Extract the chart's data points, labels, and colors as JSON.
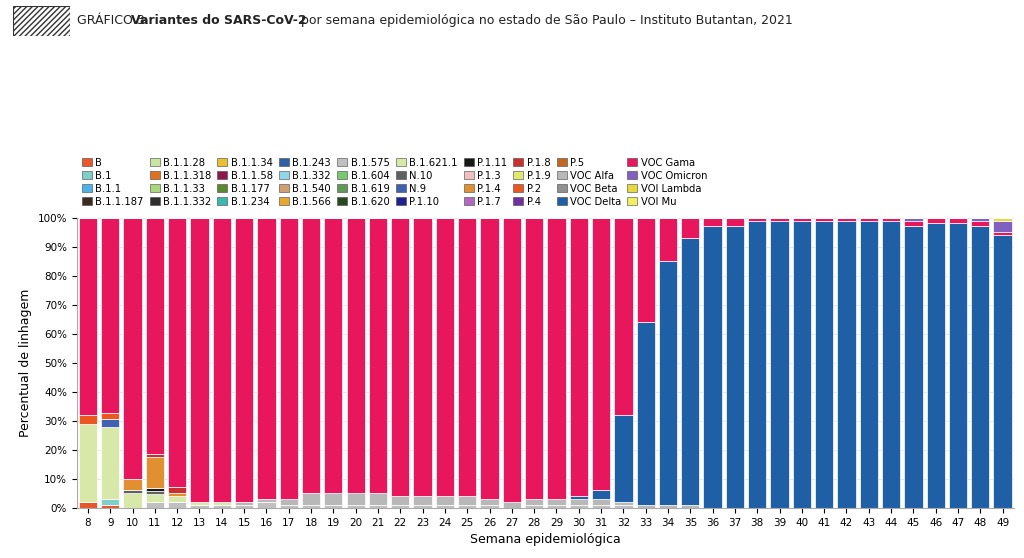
{
  "title_prefix": "GRÁFICO 3. ",
  "title_bold": "Variantes do SARS-CoV-2",
  "title_suffix": " por semana epidemiológica no estado de São Paulo – Instituto Butantan, 2021",
  "xlabel": "Semana epidemiológica",
  "ylabel": "Percentual de linhagem",
  "weeks": [
    8,
    9,
    10,
    11,
    12,
    13,
    14,
    15,
    16,
    17,
    18,
    19,
    20,
    21,
    22,
    23,
    24,
    25,
    26,
    27,
    28,
    29,
    30,
    31,
    32,
    33,
    34,
    35,
    36,
    37,
    38,
    39,
    40,
    41,
    42,
    43,
    44,
    45,
    46,
    47,
    48,
    49
  ],
  "variants_order": [
    "B",
    "B.1",
    "B.1.1",
    "B.1.1.187",
    "B.1.1.28",
    "B.1.1.318",
    "B.1.1.33",
    "B.1.1.332",
    "B.1.1.34",
    "B.1.1.58",
    "B.1.177",
    "B.1.234",
    "B.1.243",
    "B.1.332",
    "B.1.540",
    "B.1.566",
    "B.1.575",
    "B.1.604",
    "B.1.619",
    "B.1.620",
    "B.1.621.1",
    "N.10",
    "N.9",
    "P.1.10",
    "P.1.11",
    "P.1.3",
    "P.1.4",
    "P.1.7",
    "P.1.8",
    "P.1.9",
    "P.2",
    "P.4",
    "P.5",
    "VOC Alfa",
    "VOC Beta",
    "VOC Delta",
    "VOC Gama",
    "VOC Omicron",
    "VOI Lambda",
    "VOI Mu"
  ],
  "variants": {
    "B": {
      "color": "#e8562a"
    },
    "B.1": {
      "color": "#7ecfc9"
    },
    "B.1.1": {
      "color": "#4db3e6"
    },
    "B.1.1.187": {
      "color": "#3d2b1f"
    },
    "B.1.1.28": {
      "color": "#c8e6a0"
    },
    "B.1.1.318": {
      "color": "#e07020"
    },
    "B.1.1.33": {
      "color": "#a8d878"
    },
    "B.1.1.332": {
      "color": "#2d2d2d"
    },
    "B.1.1.34": {
      "color": "#e8c030"
    },
    "B.1.1.58": {
      "color": "#8b1a4a"
    },
    "B.1.177": {
      "color": "#5a8a30"
    },
    "B.1.234": {
      "color": "#3ab8b0"
    },
    "B.1.243": {
      "color": "#3060a8"
    },
    "B.1.332": {
      "color": "#90d8e8"
    },
    "B.1.540": {
      "color": "#d0a070"
    },
    "B.1.566": {
      "color": "#e8a830"
    },
    "B.1.575": {
      "color": "#c0c0c0"
    },
    "B.1.604": {
      "color": "#78c870"
    },
    "B.1.619": {
      "color": "#609858"
    },
    "B.1.620": {
      "color": "#284820"
    },
    "B.1.621.1": {
      "color": "#d8e8a8"
    },
    "N.10": {
      "color": "#606060"
    },
    "N.9": {
      "color": "#4060b0"
    },
    "P.1.10": {
      "color": "#202090"
    },
    "P.1.11": {
      "color": "#181818"
    },
    "P.1.3": {
      "color": "#f0c0c0"
    },
    "P.1.4": {
      "color": "#e09030"
    },
    "P.1.7": {
      "color": "#b068c0"
    },
    "P.1.8": {
      "color": "#c83030"
    },
    "P.1.9": {
      "color": "#e0e870"
    },
    "P.2": {
      "color": "#e85820"
    },
    "P.4": {
      "color": "#7030a0"
    },
    "P.5": {
      "color": "#c06820"
    },
    "VOC Alfa": {
      "color": "#b8b8b8"
    },
    "VOC Beta": {
      "color": "#909090"
    },
    "VOC Delta": {
      "color": "#1f5fa6"
    },
    "VOC Gama": {
      "color": "#e8175d"
    },
    "VOC Omicron": {
      "color": "#8060c0"
    },
    "VOI Lambda": {
      "color": "#e8d840"
    },
    "VOI Mu": {
      "color": "#f0f060"
    }
  },
  "data": {
    "B": [
      2,
      1,
      0,
      0,
      0,
      0,
      0,
      0,
      0,
      0,
      0,
      0,
      0,
      0,
      0,
      0,
      0,
      0,
      0,
      0,
      0,
      0,
      0,
      0,
      0,
      0,
      0,
      0,
      0,
      0,
      0,
      0,
      0,
      0,
      0,
      0,
      0,
      0,
      0,
      0,
      0,
      0
    ],
    "B.1": [
      0,
      2,
      0,
      0,
      0,
      0,
      0,
      0,
      0,
      0,
      0,
      0,
      0,
      0,
      0,
      0,
      0,
      0,
      0,
      0,
      0,
      0,
      0,
      0,
      0,
      0,
      0,
      0,
      0,
      0,
      0,
      0,
      0,
      0,
      0,
      0,
      0,
      0,
      0,
      0,
      0,
      0
    ],
    "B.1.1": [
      0,
      0,
      0,
      0,
      0,
      0,
      0,
      0,
      0,
      0,
      0,
      0,
      0,
      0,
      0,
      0,
      0,
      0,
      0,
      0,
      0,
      0,
      0,
      0,
      0,
      0,
      0,
      0,
      0,
      0,
      0,
      0,
      0,
      0,
      0,
      0,
      0,
      0,
      0,
      0,
      0,
      0
    ],
    "B.1.1.187": [
      0,
      0,
      0,
      0,
      0,
      0,
      0,
      0,
      0,
      0,
      0,
      0,
      0,
      0,
      0,
      0,
      0,
      0,
      0,
      0,
      0,
      0,
      0,
      0,
      0,
      0,
      0,
      0,
      0,
      0,
      0,
      0,
      0,
      0,
      0,
      0,
      0,
      0,
      0,
      0,
      0,
      0
    ],
    "B.1.1.28": [
      0,
      0,
      0,
      0,
      0,
      0,
      0,
      0,
      0,
      0,
      0,
      0,
      0,
      0,
      0,
      0,
      0,
      0,
      0,
      0,
      0,
      0,
      0,
      0,
      0,
      0,
      0,
      0,
      0,
      0,
      0,
      0,
      0,
      0,
      0,
      0,
      0,
      0,
      0,
      0,
      0,
      0
    ],
    "B.1.1.318": [
      0,
      0,
      0,
      0,
      0,
      0,
      0,
      0,
      0,
      0,
      0,
      0,
      0,
      0,
      0,
      0,
      0,
      0,
      0,
      0,
      0,
      0,
      0,
      0,
      0,
      0,
      0,
      0,
      0,
      0,
      0,
      0,
      0,
      0,
      0,
      0,
      0,
      0,
      0,
      0,
      0,
      0
    ],
    "B.1.1.33": [
      0,
      0,
      0,
      0,
      0,
      0,
      0,
      0,
      0,
      0,
      0,
      0,
      0,
      0,
      0,
      0,
      0,
      0,
      0,
      0,
      0,
      0,
      0,
      0,
      0,
      0,
      0,
      0,
      0,
      0,
      0,
      0,
      0,
      0,
      0,
      0,
      0,
      0,
      0,
      0,
      0,
      0
    ],
    "B.1.1.332": [
      0,
      0,
      0,
      0,
      0,
      0,
      0,
      0,
      0,
      0,
      0,
      0,
      0,
      0,
      0,
      0,
      0,
      0,
      0,
      0,
      0,
      0,
      0,
      0,
      0,
      0,
      0,
      0,
      0,
      0,
      0,
      0,
      0,
      0,
      0,
      0,
      0,
      0,
      0,
      0,
      0,
      0
    ],
    "B.1.1.34": [
      0,
      0,
      0,
      0,
      0,
      0,
      0,
      0,
      0,
      0,
      0,
      0,
      0,
      0,
      0,
      0,
      0,
      0,
      0,
      0,
      0,
      0,
      0,
      0,
      0,
      0,
      0,
      0,
      0,
      0,
      0,
      0,
      0,
      0,
      0,
      0,
      0,
      0,
      0,
      0,
      0,
      0
    ],
    "B.1.1.58": [
      0,
      0,
      0,
      0,
      0,
      0,
      0,
      0,
      0,
      0,
      0,
      0,
      0,
      0,
      0,
      0,
      0,
      0,
      0,
      0,
      0,
      0,
      0,
      0,
      0,
      0,
      0,
      0,
      0,
      0,
      0,
      0,
      0,
      0,
      0,
      0,
      0,
      0,
      0,
      0,
      0,
      0
    ],
    "B.1.177": [
      0,
      0,
      0,
      0,
      0,
      0,
      0,
      0,
      0,
      0,
      0,
      0,
      0,
      0,
      0,
      0,
      0,
      0,
      0,
      0,
      0,
      0,
      0,
      0,
      0,
      0,
      0,
      0,
      0,
      0,
      0,
      0,
      0,
      0,
      0,
      0,
      0,
      0,
      0,
      0,
      0,
      0
    ],
    "B.1.234": [
      0,
      0,
      0,
      0,
      0,
      0,
      0,
      0,
      0,
      0,
      0,
      0,
      0,
      0,
      0,
      0,
      0,
      0,
      0,
      0,
      0,
      0,
      0,
      0,
      0,
      0,
      0,
      0,
      0,
      0,
      0,
      0,
      0,
      0,
      0,
      0,
      0,
      0,
      0,
      0,
      0,
      0
    ],
    "B.1.243": [
      0,
      0,
      0,
      0,
      0,
      0,
      0,
      0,
      0,
      0,
      0,
      0,
      0,
      0,
      0,
      0,
      0,
      0,
      0,
      0,
      0,
      0,
      0,
      0,
      0,
      0,
      0,
      0,
      0,
      0,
      0,
      0,
      0,
      0,
      0,
      0,
      0,
      0,
      0,
      0,
      0,
      0
    ],
    "B.1.332": [
      0,
      0,
      0,
      0,
      0,
      0,
      0,
      0,
      0,
      0,
      0,
      0,
      0,
      0,
      0,
      0,
      0,
      0,
      0,
      0,
      0,
      0,
      0,
      0,
      0,
      0,
      0,
      0,
      0,
      0,
      0,
      0,
      0,
      0,
      0,
      0,
      0,
      0,
      0,
      0,
      0,
      0
    ],
    "B.1.540": [
      0,
      0,
      0,
      0,
      0,
      0,
      0,
      0,
      0,
      0,
      0,
      0,
      0,
      0,
      0,
      0,
      0,
      0,
      0,
      0,
      0,
      0,
      0,
      0,
      0,
      0,
      0,
      0,
      0,
      0,
      0,
      0,
      0,
      0,
      0,
      0,
      0,
      0,
      0,
      0,
      0,
      0
    ],
    "B.1.566": [
      0,
      0,
      0,
      0,
      0,
      0,
      0,
      0,
      0,
      0,
      0,
      0,
      0,
      0,
      0,
      0,
      0,
      0,
      0,
      0,
      0,
      0,
      0,
      0,
      0,
      0,
      0,
      0,
      0,
      0,
      0,
      0,
      0,
      0,
      0,
      0,
      0,
      0,
      0,
      0,
      0,
      0
    ],
    "B.1.575": [
      0,
      0,
      0,
      2,
      2,
      1,
      1,
      1,
      2,
      1,
      1,
      1,
      1,
      1,
      1,
      1,
      1,
      1,
      1,
      0,
      1,
      1,
      1,
      1,
      1,
      0,
      0,
      0,
      0,
      0,
      0,
      0,
      0,
      0,
      0,
      0,
      0,
      0,
      0,
      0,
      0,
      0
    ],
    "B.1.604": [
      0,
      0,
      0,
      0,
      0,
      0,
      0,
      0,
      0,
      0,
      0,
      0,
      0,
      0,
      0,
      0,
      0,
      0,
      0,
      0,
      0,
      0,
      0,
      0,
      0,
      0,
      0,
      0,
      0,
      0,
      0,
      0,
      0,
      0,
      0,
      0,
      0,
      0,
      0,
      0,
      0,
      0
    ],
    "B.1.619": [
      0,
      0,
      0,
      0,
      0,
      0,
      0,
      0,
      0,
      0,
      0,
      0,
      0,
      0,
      0,
      0,
      0,
      0,
      0,
      0,
      0,
      0,
      0,
      0,
      0,
      0,
      0,
      0,
      0,
      0,
      0,
      0,
      0,
      0,
      0,
      0,
      0,
      0,
      0,
      0,
      0,
      0
    ],
    "B.1.620": [
      0,
      0,
      0,
      0,
      0,
      0,
      0,
      0,
      0,
      0,
      0,
      0,
      0,
      0,
      0,
      0,
      0,
      0,
      0,
      0,
      0,
      0,
      0,
      0,
      0,
      0,
      0,
      0,
      0,
      0,
      0,
      0,
      0,
      0,
      0,
      0,
      0,
      0,
      0,
      0,
      0,
      0
    ],
    "B.1.621.1": [
      27,
      25,
      5,
      3,
      2,
      1,
      1,
      0,
      0,
      0,
      0,
      0,
      0,
      0,
      0,
      0,
      0,
      0,
      0,
      0,
      0,
      0,
      0,
      0,
      0,
      0,
      0,
      0,
      0,
      0,
      0,
      0,
      0,
      0,
      0,
      0,
      0,
      0,
      0,
      0,
      0,
      0
    ],
    "N.10": [
      0,
      0,
      1,
      1,
      0,
      0,
      0,
      0,
      0,
      0,
      0,
      0,
      0,
      0,
      0,
      0,
      0,
      0,
      0,
      0,
      0,
      0,
      0,
      0,
      0,
      0,
      0,
      0,
      0,
      0,
      0,
      0,
      0,
      0,
      0,
      0,
      0,
      0,
      0,
      0,
      0,
      0
    ],
    "N.9": [
      0,
      3,
      0,
      0,
      0,
      0,
      0,
      0,
      0,
      0,
      0,
      0,
      0,
      0,
      0,
      0,
      0,
      0,
      0,
      0,
      0,
      0,
      0,
      0,
      0,
      0,
      0,
      0,
      0,
      0,
      0,
      0,
      0,
      0,
      0,
      0,
      0,
      0,
      0,
      0,
      0,
      0
    ],
    "P.1.10": [
      0,
      0,
      0,
      0,
      0,
      0,
      0,
      0,
      0,
      0,
      0,
      0,
      0,
      0,
      0,
      0,
      0,
      0,
      0,
      0,
      0,
      0,
      0,
      0,
      0,
      0,
      0,
      0,
      0,
      0,
      0,
      0,
      0,
      0,
      0,
      0,
      0,
      0,
      0,
      0,
      0,
      0
    ],
    "P.1.11": [
      0,
      0,
      0,
      1,
      0,
      0,
      0,
      0,
      0,
      0,
      0,
      0,
      0,
      0,
      0,
      0,
      0,
      0,
      0,
      0,
      0,
      0,
      0,
      0,
      0,
      0,
      0,
      0,
      0,
      0,
      0,
      0,
      0,
      0,
      0,
      0,
      0,
      0,
      0,
      0,
      0,
      0
    ],
    "P.1.3": [
      0,
      0,
      0,
      0,
      0,
      0,
      0,
      0,
      0,
      0,
      0,
      0,
      0,
      0,
      0,
      0,
      0,
      0,
      0,
      0,
      0,
      0,
      0,
      0,
      0,
      0,
      0,
      0,
      0,
      0,
      0,
      0,
      0,
      0,
      0,
      0,
      0,
      0,
      0,
      0,
      0,
      0
    ],
    "P.1.4": [
      0,
      0,
      4,
      11,
      1,
      0,
      0,
      0,
      0,
      0,
      0,
      0,
      0,
      0,
      0,
      0,
      0,
      0,
      0,
      0,
      0,
      0,
      0,
      0,
      0,
      0,
      0,
      0,
      0,
      0,
      0,
      0,
      0,
      0,
      0,
      0,
      0,
      0,
      0,
      0,
      0,
      0
    ],
    "P.1.7": [
      0,
      0,
      0,
      0,
      0,
      0,
      0,
      0,
      0,
      0,
      0,
      0,
      0,
      0,
      0,
      0,
      0,
      0,
      0,
      0,
      0,
      0,
      0,
      0,
      0,
      0,
      0,
      0,
      0,
      0,
      0,
      0,
      0,
      0,
      0,
      0,
      0,
      0,
      0,
      0,
      0,
      0
    ],
    "P.1.8": [
      0,
      0,
      0,
      1,
      2,
      0,
      0,
      0,
      0,
      0,
      0,
      0,
      0,
      0,
      0,
      0,
      0,
      0,
      0,
      0,
      0,
      0,
      0,
      0,
      0,
      0,
      0,
      0,
      0,
      0,
      0,
      0,
      0,
      0,
      0,
      0,
      0,
      0,
      0,
      0,
      0,
      0
    ],
    "P.1.9": [
      0,
      0,
      0,
      0,
      0,
      0,
      0,
      0,
      0,
      0,
      0,
      0,
      0,
      0,
      0,
      0,
      0,
      0,
      0,
      0,
      0,
      0,
      0,
      0,
      0,
      0,
      0,
      0,
      0,
      0,
      0,
      0,
      0,
      0,
      0,
      0,
      0,
      0,
      0,
      0,
      0,
      0
    ],
    "P.2": [
      3,
      2,
      0,
      0,
      0,
      0,
      0,
      0,
      0,
      0,
      0,
      0,
      0,
      0,
      0,
      0,
      0,
      0,
      0,
      0,
      0,
      0,
      0,
      0,
      0,
      0,
      0,
      0,
      0,
      0,
      0,
      0,
      0,
      0,
      0,
      0,
      0,
      0,
      0,
      0,
      0,
      0
    ],
    "P.4": [
      0,
      0,
      0,
      0,
      0,
      0,
      0,
      0,
      0,
      0,
      0,
      0,
      0,
      0,
      0,
      0,
      0,
      0,
      0,
      0,
      0,
      0,
      0,
      0,
      0,
      0,
      0,
      0,
      0,
      0,
      0,
      0,
      0,
      0,
      0,
      0,
      0,
      0,
      0,
      0,
      0,
      0
    ],
    "P.5": [
      0,
      0,
      0,
      0,
      0,
      0,
      0,
      0,
      0,
      0,
      0,
      0,
      0,
      0,
      0,
      0,
      0,
      0,
      0,
      0,
      0,
      0,
      0,
      0,
      0,
      0,
      0,
      0,
      0,
      0,
      0,
      0,
      0,
      0,
      0,
      0,
      0,
      0,
      0,
      0,
      0,
      0
    ],
    "VOC Alfa": [
      0,
      0,
      0,
      0,
      0,
      0,
      0,
      1,
      1,
      2,
      4,
      4,
      4,
      4,
      3,
      3,
      3,
      3,
      2,
      2,
      2,
      2,
      2,
      2,
      1,
      1,
      1,
      1,
      0,
      0,
      0,
      0,
      0,
      0,
      0,
      0,
      0,
      0,
      0,
      0,
      0,
      0
    ],
    "VOC Beta": [
      0,
      0,
      0,
      0,
      0,
      0,
      0,
      0,
      0,
      0,
      0,
      0,
      0,
      0,
      0,
      0,
      0,
      0,
      0,
      0,
      0,
      0,
      0,
      0,
      0,
      0,
      0,
      0,
      0,
      0,
      0,
      0,
      0,
      0,
      0,
      0,
      0,
      0,
      0,
      0,
      0,
      0
    ],
    "VOC Delta": [
      0,
      0,
      0,
      0,
      0,
      0,
      0,
      0,
      0,
      0,
      0,
      0,
      0,
      0,
      0,
      0,
      0,
      0,
      0,
      0,
      0,
      0,
      1,
      3,
      30,
      63,
      84,
      92,
      97,
      97,
      99,
      99,
      99,
      99,
      99,
      99,
      99,
      97,
      98,
      98,
      97,
      94
    ],
    "VOC Gama": [
      68,
      68,
      90,
      83,
      93,
      98,
      98,
      98,
      97,
      97,
      95,
      95,
      95,
      95,
      96,
      96,
      96,
      96,
      97,
      98,
      97,
      97,
      96,
      94,
      68,
      36,
      15,
      7,
      3,
      3,
      1,
      1,
      1,
      1,
      1,
      1,
      1,
      2,
      2,
      2,
      2,
      1
    ],
    "VOC Omicron": [
      0,
      0,
      0,
      0,
      0,
      0,
      0,
      0,
      0,
      0,
      0,
      0,
      0,
      0,
      0,
      0,
      0,
      0,
      0,
      0,
      0,
      0,
      0,
      0,
      0,
      0,
      0,
      0,
      0,
      0,
      0,
      0,
      0,
      0,
      0,
      0,
      0,
      1,
      0,
      0,
      1,
      4
    ],
    "VOI Lambda": [
      0,
      0,
      0,
      0,
      0,
      0,
      0,
      0,
      0,
      0,
      0,
      0,
      0,
      0,
      0,
      0,
      0,
      0,
      0,
      0,
      0,
      0,
      0,
      0,
      0,
      0,
      0,
      0,
      0,
      0,
      0,
      0,
      0,
      0,
      0,
      0,
      0,
      0,
      0,
      0,
      0,
      1
    ],
    "VOI Mu": [
      0,
      0,
      0,
      0,
      0,
      0,
      0,
      0,
      0,
      0,
      0,
      0,
      0,
      0,
      0,
      0,
      0,
      0,
      0,
      0,
      0,
      0,
      0,
      0,
      0,
      0,
      0,
      0,
      0,
      0,
      0,
      0,
      0,
      0,
      0,
      0,
      0,
      0,
      0,
      0,
      0,
      0
    ]
  },
  "background_color": "#ffffff",
  "ylim": [
    0,
    100
  ],
  "bar_width": 0.82,
  "tick_fontsize": 7.5,
  "label_fontsize": 9,
  "legend_fontsize": 7.2
}
